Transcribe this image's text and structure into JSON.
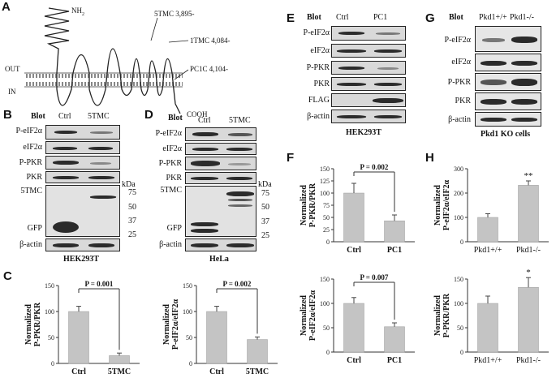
{
  "panels": {
    "A": {
      "letter": "A",
      "out": "OUT",
      "in": "IN",
      "nh2": "NH",
      "nh2_sub": "2",
      "cooh": "COOH",
      "tm5": "5TMC 3,895-",
      "tm1": "1TMC 4,084-",
      "pc1c": "PC1C 4,104-"
    },
    "B": {
      "letter": "B",
      "blot": "Blot",
      "cols": [
        "Ctrl",
        "5TMC"
      ],
      "rows": [
        "P-eIF2α",
        "eIF2α",
        "P-PKR",
        "PKR",
        "5TMC",
        "GFP",
        "β-actin"
      ],
      "kda": "kDa",
      "markers": [
        "75",
        "50",
        "37",
        "25"
      ],
      "cell": "HEK293T"
    },
    "C": {
      "letter": "C",
      "charts": [
        {
          "ylabel": [
            "Normalized",
            "P-PKR/PKR"
          ],
          "pvalue": "P = 0.001",
          "categories": [
            "Ctrl",
            "5TMC"
          ]
        },
        {
          "ylabel": [
            "Normalized",
            "P-eIF2α/eIF2α"
          ],
          "pvalue": "P = 0.002",
          "categories": [
            "Ctrl",
            "5TMC"
          ]
        }
      ]
    },
    "D": {
      "letter": "D",
      "blot": "Blot",
      "cols": [
        "Ctrl",
        "5TMC"
      ],
      "rows": [
        "P-eIF2α",
        "eIF2α",
        "P-PKR",
        "PKR",
        "5TMC",
        "GFP",
        "β-actin"
      ],
      "kda": "kDa",
      "markers": [
        "75",
        "50",
        "37",
        "25"
      ],
      "cell": "HeLa"
    },
    "E": {
      "letter": "E",
      "blot": "Blot",
      "cols": [
        "Ctrl",
        "PC1"
      ],
      "rows": [
        "P-eIF2α",
        "eIF2α",
        "P-PKR",
        "PKR",
        "FLAG",
        "β-actin"
      ],
      "cell": "HEK293T"
    },
    "F": {
      "letter": "F",
      "charts": [
        {
          "ylabel": [
            "Normalized",
            "P-PKR/PKR"
          ],
          "pvalue": "P = 0.002",
          "categories": [
            "Ctrl",
            "PC1"
          ]
        },
        {
          "ylabel": [
            "Normalized",
            "P-eIF2α/eIF2α"
          ],
          "pvalue": "P = 0.007",
          "categories": [
            "Ctrl",
            "PC1"
          ]
        }
      ]
    },
    "G": {
      "letter": "G",
      "blot": "Blot",
      "cols": [
        "Pkd1+/+",
        "Pkd1-/-"
      ],
      "rows": [
        "P-eIF2α",
        "eIF2α",
        "P-PKR",
        "PKR",
        "β-actin"
      ],
      "cell": "Pkd1 KO cells"
    },
    "H": {
      "letter": "H",
      "charts": [
        {
          "ylabel": [
            "Normalized",
            "P-eIF2α/eIF2α"
          ],
          "sig": "**",
          "categories": [
            "Pkd1+/+",
            "Pkd1-/-"
          ]
        },
        {
          "ylabel": [
            "Normalized",
            "P-PKR/PKR"
          ],
          "sig": "*",
          "categories": [
            "Pkd1+/+",
            "Pkd1-/-"
          ]
        }
      ]
    }
  },
  "chart_data": [
    {
      "id": "C1",
      "type": "bar",
      "categories": [
        "Ctrl",
        "5TMC"
      ],
      "values": [
        100,
        15
      ],
      "errors": [
        10,
        5
      ],
      "ylim": [
        0,
        150
      ],
      "yticks": [
        "0",
        "50",
        "100",
        "150"
      ],
      "annotation": "P = 0.001"
    },
    {
      "id": "C2",
      "type": "bar",
      "categories": [
        "Ctrl",
        "5TMC"
      ],
      "values": [
        100,
        46
      ],
      "errors": [
        10,
        5
      ],
      "ylim": [
        0,
        150
      ],
      "yticks": [
        "0",
        "50",
        "100",
        "150"
      ],
      "annotation": "P = 0.002"
    },
    {
      "id": "F1",
      "type": "bar",
      "categories": [
        "Ctrl",
        "PC1"
      ],
      "values": [
        100,
        43
      ],
      "errors": [
        20,
        12
      ],
      "ylim": [
        0,
        150
      ],
      "yticks": [
        "0",
        "25",
        "50",
        "75",
        "100",
        "125",
        "150"
      ],
      "annotation": "P = 0.002"
    },
    {
      "id": "F2",
      "type": "bar",
      "categories": [
        "Ctrl",
        "PC1"
      ],
      "values": [
        100,
        52
      ],
      "errors": [
        12,
        8
      ],
      "ylim": [
        0,
        150
      ],
      "yticks": [
        "0",
        "50",
        "100",
        "150"
      ],
      "annotation": "P = 0.007"
    },
    {
      "id": "H1",
      "type": "bar",
      "categories": [
        "Pkd1+/+",
        "Pkd1-/-"
      ],
      "values": [
        100,
        232
      ],
      "errors": [
        15,
        18
      ],
      "ylim": [
        0,
        300
      ],
      "yticks": [
        "0",
        "100",
        "200",
        "300"
      ],
      "annotation": "**"
    },
    {
      "id": "H2",
      "type": "bar",
      "categories": [
        "Pkd1+/+",
        "Pkd1-/-"
      ],
      "values": [
        100,
        133
      ],
      "errors": [
        15,
        20
      ],
      "ylim": [
        0,
        150
      ],
      "yticks": [
        "0",
        "50",
        "100",
        "150"
      ],
      "annotation": "*"
    }
  ]
}
